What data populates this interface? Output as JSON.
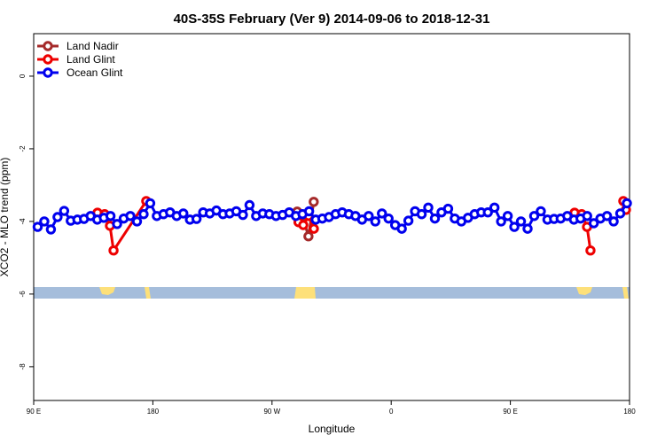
{
  "chart_data": {
    "type": "line",
    "title": "40S-35S February (Ver 9)   2014-09-06 to 2018-12-31",
    "x_label": "Longitude",
    "y_label": "XCO2 - MLO trend (ppm)",
    "xlim": [
      90,
      540
    ],
    "xticks": [
      {
        "value": 90,
        "label": "90 E"
      },
      {
        "value": 180,
        "label": "180"
      },
      {
        "value": 270,
        "label": "90 W"
      },
      {
        "value": 360,
        "label": "0"
      },
      {
        "value": 450,
        "label": "90 E"
      },
      {
        "value": 540,
        "label": "180"
      }
    ],
    "ylim": [
      -8.93,
      1.17
    ],
    "yticks": [
      0,
      -2,
      -4,
      -6,
      -8
    ],
    "legend": "top-left",
    "series": [
      {
        "name": "Land Nadir",
        "color": "#a52a2a",
        "x": [
          289,
          293,
          297.5,
          301.5
        ],
        "values": [
          -3.73,
          -3.85,
          -4.41,
          -3.46
        ]
      },
      {
        "name": "Land Glint",
        "color": "#ee0000",
        "x": [
          138.2,
          143.6,
          147.6,
          150.3,
          175,
          230,
          290,
          293.6,
          297.6,
          301.6,
          400,
          498.5,
          503.9,
          507.9,
          510.5,
          520,
          535.3,
          537.3
        ],
        "values": [
          -3.76,
          -3.8,
          -4.12,
          -4.8,
          -3.44,
          null,
          -4.02,
          -4.1,
          -3.85,
          -4.2,
          null,
          -3.76,
          -3.8,
          -4.15,
          -4.8,
          null,
          -3.44,
          -3.68
        ]
      },
      {
        "name": "Ocean Glint",
        "color": "#0000ee",
        "x": [
          93,
          98,
          103,
          108,
          113,
          118,
          123,
          128,
          133,
          138,
          143,
          148,
          153,
          158,
          163,
          168,
          173,
          178,
          183,
          188,
          193,
          198,
          203,
          208,
          213,
          218,
          223,
          228,
          233,
          238,
          243,
          248,
          253,
          258,
          263,
          268,
          273,
          278,
          283,
          288,
          293,
          298,
          303,
          308,
          313,
          318,
          323,
          328,
          333,
          338,
          343,
          348,
          353,
          358,
          363,
          368,
          373,
          378,
          383,
          388,
          393,
          398,
          403,
          408,
          413,
          418,
          423,
          428,
          433,
          438,
          443,
          448,
          453,
          458,
          463,
          468,
          473,
          478,
          483,
          488,
          493,
          498,
          503,
          508,
          513,
          518,
          523,
          528,
          533,
          538
        ],
        "values": [
          -4.15,
          -4.0,
          -4.22,
          -3.88,
          -3.71,
          -3.98,
          -3.95,
          -3.93,
          -3.85,
          -3.95,
          -3.9,
          -3.85,
          -4.07,
          -3.92,
          -3.85,
          -4.0,
          -3.8,
          -3.5,
          -3.85,
          -3.8,
          -3.75,
          -3.85,
          -3.78,
          -3.95,
          -3.93,
          -3.75,
          -3.78,
          -3.7,
          -3.8,
          -3.78,
          -3.72,
          -3.82,
          -3.55,
          -3.85,
          -3.78,
          -3.8,
          -3.85,
          -3.82,
          -3.75,
          -3.85,
          -3.8,
          -3.72,
          -3.95,
          -3.92,
          -3.88,
          -3.8,
          -3.75,
          -3.8,
          -3.85,
          -3.95,
          -3.85,
          -4.0,
          -3.78,
          -3.92,
          -4.1,
          -4.2,
          -3.98,
          -3.72,
          -3.8,
          -3.62,
          -3.92,
          -3.75,
          -3.65,
          -3.92,
          -4.0,
          -3.9,
          -3.8,
          -3.75,
          -3.75,
          -3.62,
          -4.0,
          -3.85,
          -4.15,
          -4.0,
          -4.2,
          -3.85,
          -3.72,
          -3.95,
          -3.93,
          -3.92,
          -3.85,
          -3.95,
          -3.92,
          -3.85,
          -4.05,
          -3.92,
          -3.85,
          -4.0,
          -3.78,
          -3.5
        ]
      }
    ]
  }
}
